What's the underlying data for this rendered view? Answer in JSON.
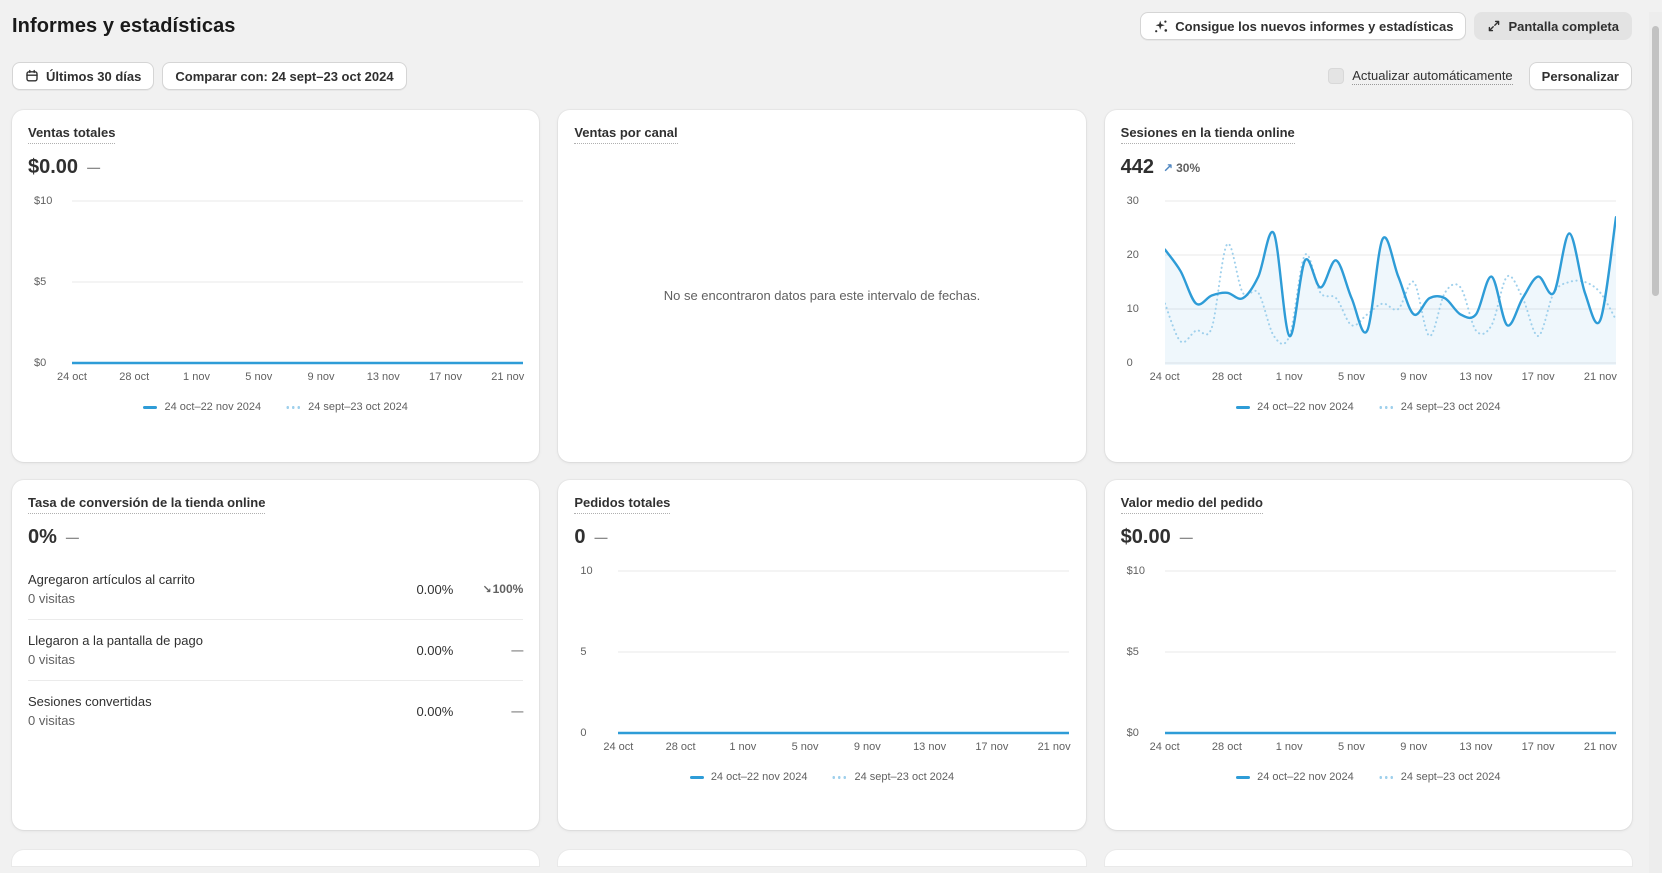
{
  "page": {
    "title": "Informes y estadísticas"
  },
  "header": {
    "new_reports_button": "Consigue los nuevos informes y estadísticas",
    "fullscreen_button": "Pantalla completa"
  },
  "controls": {
    "date_range_button": "Últimos 30 días",
    "compare_button": "Comparar con: 24 sept–23 oct 2024",
    "auto_refresh_label": "Actualizar automáticamente",
    "customize_button": "Personalizar"
  },
  "legend": {
    "current": "24 oct–22 nov 2024",
    "previous": "24 sept–23 oct 2024"
  },
  "icons": {
    "up_arrow": "↗",
    "down_arrow": "↘"
  },
  "colors": {
    "accent_blue": "#2e9cd7",
    "compare_blue": "#9fd0ec",
    "area_fill": "rgba(46,156,215,0.08)",
    "up_arrow": "#4e86c0",
    "grid_line": "#e9e9e9"
  },
  "cards": {
    "ventas_totales": {
      "title": "Ventas totales",
      "value": "$0.00",
      "delta": "—"
    },
    "ventas_por_canal": {
      "title": "Ventas por canal",
      "empty_message": "No se encontraron datos para este intervalo de fechas."
    },
    "sesiones": {
      "title": "Sesiones en la tienda online",
      "value": "442",
      "delta": "30%",
      "delta_direction": "up"
    },
    "conversion": {
      "title": "Tasa de conversión de la tienda online",
      "value": "0%",
      "delta": "—",
      "rows": [
        {
          "label": "Agregaron artículos al carrito",
          "sub": "0 visitas",
          "value": "0.00%",
          "delta": "100%",
          "delta_direction": "down"
        },
        {
          "label": "Llegaron a la pantalla de pago",
          "sub": "0 visitas",
          "value": "0.00%",
          "delta": "—"
        },
        {
          "label": "Sesiones convertidas",
          "sub": "0 visitas",
          "value": "0.00%",
          "delta": "—"
        }
      ]
    },
    "pedidos": {
      "title": "Pedidos totales",
      "value": "0",
      "delta": "—"
    },
    "valor_medio": {
      "title": "Valor medio del pedido",
      "value": "$0.00",
      "delta": "—"
    }
  },
  "chart_data": [
    {
      "id": "ventas_totales",
      "type": "line",
      "title": "Ventas totales",
      "ylim": [
        0,
        10
      ],
      "y_ticks": [
        {
          "label": "$10",
          "value": 10
        },
        {
          "label": "$5",
          "value": 5
        },
        {
          "label": "$0",
          "value": 0
        }
      ],
      "x_ticks": [
        "24 oct",
        "28 oct",
        "1 nov",
        "5 nov",
        "9 nov",
        "13 nov",
        "17 nov",
        "21 nov"
      ],
      "x_tick_indices": [
        0,
        4,
        8,
        12,
        16,
        20,
        24,
        28
      ],
      "grid": true,
      "legend_position": "bottom",
      "fill": false,
      "series": [
        {
          "name": "24 oct–22 nov 2024",
          "style": "solid",
          "values": [
            0,
            0,
            0,
            0,
            0,
            0,
            0,
            0,
            0,
            0,
            0,
            0,
            0,
            0,
            0,
            0,
            0,
            0,
            0,
            0,
            0,
            0,
            0,
            0,
            0,
            0,
            0,
            0,
            0,
            0
          ]
        },
        {
          "name": "24 sept–23 oct 2024",
          "style": "dotted",
          "values": [
            0,
            0,
            0,
            0,
            0,
            0,
            0,
            0,
            0,
            0,
            0,
            0,
            0,
            0,
            0,
            0,
            0,
            0,
            0,
            0,
            0,
            0,
            0,
            0,
            0,
            0,
            0,
            0,
            0,
            0
          ]
        }
      ]
    },
    {
      "id": "sesiones_tienda_online",
      "type": "line",
      "title": "Sesiones en la tienda online",
      "ylim": [
        0,
        30
      ],
      "y_ticks": [
        {
          "label": "30",
          "value": 30
        },
        {
          "label": "20",
          "value": 20
        },
        {
          "label": "10",
          "value": 10
        },
        {
          "label": "0",
          "value": 0
        }
      ],
      "x_ticks": [
        "24 oct",
        "28 oct",
        "1 nov",
        "5 nov",
        "9 nov",
        "13 nov",
        "17 nov",
        "21 nov"
      ],
      "x_tick_indices": [
        0,
        4,
        8,
        12,
        16,
        20,
        24,
        28
      ],
      "grid": true,
      "legend_position": "bottom",
      "fill": true,
      "series": [
        {
          "name": "24 oct–22 nov 2024",
          "style": "solid",
          "values": [
            21,
            17,
            11,
            12.5,
            13,
            12,
            16,
            24,
            5,
            19,
            14,
            19,
            12,
            6,
            23,
            16,
            9,
            12,
            12,
            9,
            9,
            16,
            7,
            12,
            16,
            13,
            24,
            13,
            8,
            27
          ]
        },
        {
          "name": "24 sept–23 oct 2024",
          "style": "dotted",
          "values": [
            11,
            4,
            6,
            6.5,
            22,
            13,
            13,
            5,
            5,
            20,
            13,
            12,
            7,
            9,
            11,
            10,
            15,
            5,
            13,
            14,
            6,
            7,
            16,
            12,
            5,
            13,
            15,
            15,
            13,
            8
          ]
        }
      ]
    },
    {
      "id": "pedidos_totales",
      "type": "line",
      "title": "Pedidos totales",
      "ylim": [
        0,
        10
      ],
      "y_ticks": [
        {
          "label": "10",
          "value": 10
        },
        {
          "label": "5",
          "value": 5
        },
        {
          "label": "0",
          "value": 0
        }
      ],
      "x_ticks": [
        "24 oct",
        "28 oct",
        "1 nov",
        "5 nov",
        "9 nov",
        "13 nov",
        "17 nov",
        "21 nov"
      ],
      "x_tick_indices": [
        0,
        4,
        8,
        12,
        16,
        20,
        24,
        28
      ],
      "grid": true,
      "legend_position": "bottom",
      "fill": false,
      "series": [
        {
          "name": "24 oct–22 nov 2024",
          "style": "solid",
          "values": [
            0,
            0,
            0,
            0,
            0,
            0,
            0,
            0,
            0,
            0,
            0,
            0,
            0,
            0,
            0,
            0,
            0,
            0,
            0,
            0,
            0,
            0,
            0,
            0,
            0,
            0,
            0,
            0,
            0,
            0
          ]
        },
        {
          "name": "24 sept–23 oct 2024",
          "style": "dotted",
          "values": [
            0,
            0,
            0,
            0,
            0,
            0,
            0,
            0,
            0,
            0,
            0,
            0,
            0,
            0,
            0,
            0,
            0,
            0,
            0,
            0,
            0,
            0,
            0,
            0,
            0,
            0,
            0,
            0,
            0,
            0
          ]
        }
      ]
    },
    {
      "id": "valor_medio_pedido",
      "type": "line",
      "title": "Valor medio del pedido",
      "ylim": [
        0,
        10
      ],
      "y_ticks": [
        {
          "label": "$10",
          "value": 10
        },
        {
          "label": "$5",
          "value": 5
        },
        {
          "label": "$0",
          "value": 0
        }
      ],
      "x_ticks": [
        "24 oct",
        "28 oct",
        "1 nov",
        "5 nov",
        "9 nov",
        "13 nov",
        "17 nov",
        "21 nov"
      ],
      "x_tick_indices": [
        0,
        4,
        8,
        12,
        16,
        20,
        24,
        28
      ],
      "grid": true,
      "legend_position": "bottom",
      "fill": false,
      "series": [
        {
          "name": "24 oct–22 nov 2024",
          "style": "solid",
          "values": [
            0,
            0,
            0,
            0,
            0,
            0,
            0,
            0,
            0,
            0,
            0,
            0,
            0,
            0,
            0,
            0,
            0,
            0,
            0,
            0,
            0,
            0,
            0,
            0,
            0,
            0,
            0,
            0,
            0,
            0
          ]
        },
        {
          "name": "24 sept–23 oct 2024",
          "style": "dotted",
          "values": [
            0,
            0,
            0,
            0,
            0,
            0,
            0,
            0,
            0,
            0,
            0,
            0,
            0,
            0,
            0,
            0,
            0,
            0,
            0,
            0,
            0,
            0,
            0,
            0,
            0,
            0,
            0,
            0,
            0,
            0
          ]
        }
      ]
    }
  ]
}
